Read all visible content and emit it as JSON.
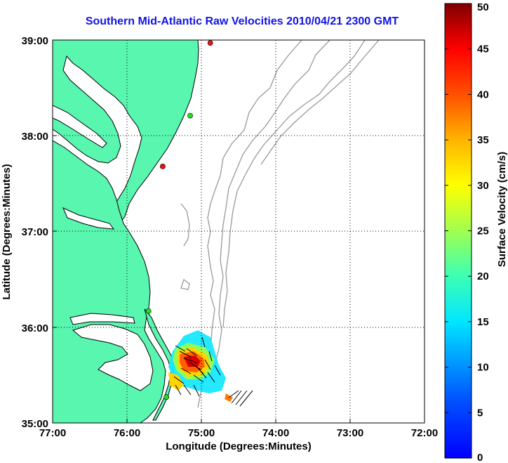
{
  "title": "Southern Mid-Atlantic Raw Velocities 2010/04/21 2300 GMT",
  "axes": {
    "xlabel": "Longitude (Degrees:Minutes)",
    "ylabel": "Latitude (Degrees:Minutes)",
    "xticks": [
      "77:00",
      "76:00",
      "75:00",
      "74:00",
      "73:00",
      "72:00"
    ],
    "yticks": [
      "39:00",
      "38:00",
      "37:00",
      "36:00",
      "35:00"
    ],
    "grid": "dotted"
  },
  "colorbar": {
    "label": "Surface Velocity (cm/s)",
    "ticks": [
      "0",
      "5",
      "10",
      "15",
      "20",
      "25",
      "30",
      "35",
      "40",
      "45",
      "50"
    ],
    "range": [
      0,
      50
    ],
    "colormap": "jet"
  },
  "colors": {
    "land": "#59f6b0",
    "coastline": "#000000",
    "bathymetry": "#999999",
    "title": "#1212e6",
    "site_green": "#22dd22",
    "site_red": "#ee1111"
  },
  "stations": [
    {
      "lon": -74.88,
      "lat": 38.97,
      "status": "red"
    },
    {
      "lon": -75.15,
      "lat": 38.21,
      "status": "green"
    },
    {
      "lon": -75.52,
      "lat": 37.68,
      "status": "red"
    },
    {
      "lon": -75.71,
      "lat": 36.17,
      "status": "green"
    },
    {
      "lon": -75.47,
      "lat": 35.27,
      "status": "green"
    }
  ]
}
